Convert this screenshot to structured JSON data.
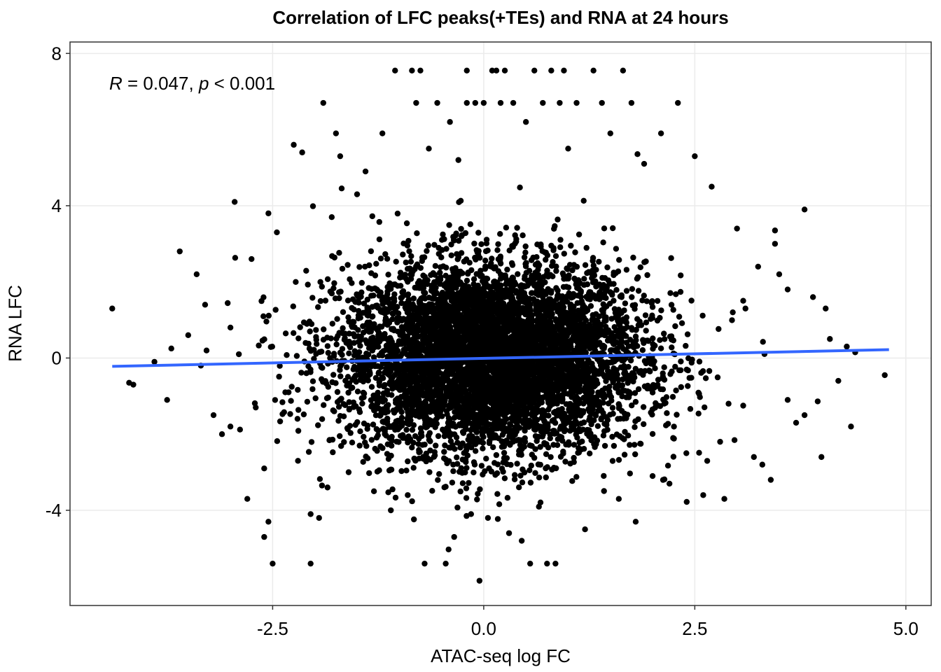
{
  "chart_data": {
    "type": "scatter",
    "title": "Correlation of LFC peaks(+TEs) and RNA at 24 hours",
    "xlabel": "ATAC-seq log FC",
    "ylabel": "RNA LFC",
    "xlim": [
      -4.9,
      5.3
    ],
    "ylim": [
      -6.5,
      8.3
    ],
    "x_ticks": [
      -2.5,
      0.0,
      2.5,
      5.0
    ],
    "x_tick_labels": [
      "-2.5",
      "0.0",
      "2.5",
      "5.0"
    ],
    "y_ticks": [
      -4,
      0,
      4,
      8
    ],
    "y_tick_labels": [
      "-4",
      "0",
      "4",
      "8"
    ],
    "grid": true,
    "annotation": {
      "r_symbol": "R",
      "r_text": " = 0.047, ",
      "p_symbol": "p",
      "p_text": " < 0.001"
    },
    "fit_line": {
      "x": [
        -4.4,
        4.8
      ],
      "y": [
        -0.22,
        0.22
      ],
      "color": "#3366FF"
    },
    "point_color": "#000000",
    "core_cloud": {
      "center_x": 0.1,
      "center_y": 0.0,
      "sd_x": 0.9,
      "sd_y": 1.25
    },
    "points": [
      [
        -4.4,
        1.3
      ],
      [
        -4.15,
        -0.7
      ],
      [
        -4.2,
        -0.65
      ],
      [
        -3.9,
        -0.1
      ],
      [
        -3.75,
        -1.1
      ],
      [
        -3.7,
        0.25
      ],
      [
        -3.6,
        2.8
      ],
      [
        -3.4,
        2.2
      ],
      [
        -3.35,
        -0.2
      ],
      [
        -3.3,
        1.4
      ],
      [
        -3.2,
        -1.5
      ],
      [
        -3.1,
        -2.0
      ],
      [
        -3.0,
        -1.8
      ],
      [
        -2.95,
        4.1
      ],
      [
        -2.8,
        -3.7
      ],
      [
        -2.75,
        2.6
      ],
      [
        -2.7,
        -1.3
      ],
      [
        -2.6,
        -2.9
      ],
      [
        -2.55,
        3.8
      ],
      [
        -2.5,
        -5.4
      ],
      [
        -2.55,
        -4.3
      ],
      [
        -2.6,
        -4.7
      ],
      [
        -2.45,
        3.3
      ],
      [
        -2.35,
        -0.9
      ],
      [
        -2.25,
        5.6
      ],
      [
        -2.2,
        -2.7
      ],
      [
        -2.15,
        5.4
      ],
      [
        -2.1,
        -0.4
      ],
      [
        -2.05,
        -5.4
      ],
      [
        -2.05,
        -4.1
      ],
      [
        -1.95,
        -4.2
      ],
      [
        -1.9,
        6.7
      ],
      [
        -1.85,
        -3.4
      ],
      [
        -1.8,
        3.7
      ],
      [
        -1.75,
        5.9
      ],
      [
        -1.7,
        5.3
      ],
      [
        -1.6,
        -3.0
      ],
      [
        -1.5,
        4.3
      ],
      [
        -1.4,
        4.9
      ],
      [
        -1.3,
        -3.5
      ],
      [
        -1.2,
        5.9
      ],
      [
        -1.1,
        -4.0
      ],
      [
        -1.05,
        7.55
      ],
      [
        -0.9,
        -3.6
      ],
      [
        -0.85,
        7.55
      ],
      [
        -0.75,
        7.55
      ],
      [
        -0.7,
        -5.4
      ],
      [
        -0.8,
        6.7
      ],
      [
        -0.65,
        5.5
      ],
      [
        -0.55,
        6.7
      ],
      [
        -0.45,
        -5.4
      ],
      [
        -0.4,
        6.2
      ],
      [
        -0.35,
        -4.7
      ],
      [
        -0.3,
        5.2
      ],
      [
        -0.2,
        6.7
      ],
      [
        -0.1,
        6.7
      ],
      [
        -0.15,
        -4.1
      ],
      [
        -0.2,
        7.55
      ],
      [
        -0.05,
        -5.85
      ],
      [
        0.0,
        6.7
      ],
      [
        0.05,
        -4.2
      ],
      [
        0.1,
        7.55
      ],
      [
        0.15,
        7.55
      ],
      [
        0.2,
        6.7
      ],
      [
        0.25,
        7.55
      ],
      [
        0.3,
        -4.6
      ],
      [
        0.35,
        6.7
      ],
      [
        0.45,
        -4.8
      ],
      [
        0.5,
        6.2
      ],
      [
        0.55,
        -5.4
      ],
      [
        0.6,
        7.55
      ],
      [
        0.7,
        6.7
      ],
      [
        0.75,
        -5.4
      ],
      [
        0.8,
        7.55
      ],
      [
        0.85,
        -5.4
      ],
      [
        0.9,
        6.7
      ],
      [
        0.95,
        7.55
      ],
      [
        1.0,
        5.5
      ],
      [
        1.1,
        6.7
      ],
      [
        1.2,
        -4.5
      ],
      [
        1.3,
        7.55
      ],
      [
        1.4,
        6.7
      ],
      [
        1.5,
        5.9
      ],
      [
        1.6,
        -3.7
      ],
      [
        1.65,
        7.55
      ],
      [
        1.75,
        6.7
      ],
      [
        1.8,
        -4.3
      ],
      [
        1.9,
        5.1
      ],
      [
        2.0,
        -3.1
      ],
      [
        2.1,
        5.9
      ],
      [
        2.2,
        -3.3
      ],
      [
        2.3,
        6.7
      ],
      [
        2.4,
        -2.5
      ],
      [
        2.5,
        5.3
      ],
      [
        2.6,
        -3.6
      ],
      [
        2.7,
        4.5
      ],
      [
        2.8,
        -2.2
      ],
      [
        2.85,
        -3.7
      ],
      [
        2.9,
        -1.2
      ],
      [
        3.0,
        3.4
      ],
      [
        3.1,
        1.3
      ],
      [
        3.2,
        -2.6
      ],
      [
        3.3,
        -2.8
      ],
      [
        3.4,
        -3.2
      ],
      [
        3.45,
        3.0
      ],
      [
        3.5,
        2.2
      ],
      [
        3.6,
        -1.1
      ],
      [
        3.7,
        -1.7
      ],
      [
        3.8,
        3.9
      ],
      [
        3.8,
        -1.5
      ],
      [
        3.9,
        1.6
      ],
      [
        4.0,
        -2.6
      ],
      [
        4.05,
        1.3
      ],
      [
        4.1,
        0.5
      ],
      [
        4.2,
        -0.6
      ],
      [
        4.3,
        0.3
      ],
      [
        4.35,
        -1.8
      ],
      [
        4.4,
        0.15
      ],
      [
        4.75,
        -0.45
      ],
      [
        3.45,
        3.35
      ],
      [
        3.6,
        1.8
      ],
      [
        3.25,
        2.4
      ],
      [
        2.95,
        1.2
      ],
      [
        -3.5,
        0.6
      ],
      [
        -3.0,
        0.8
      ],
      [
        -2.9,
        0.1
      ]
    ]
  }
}
